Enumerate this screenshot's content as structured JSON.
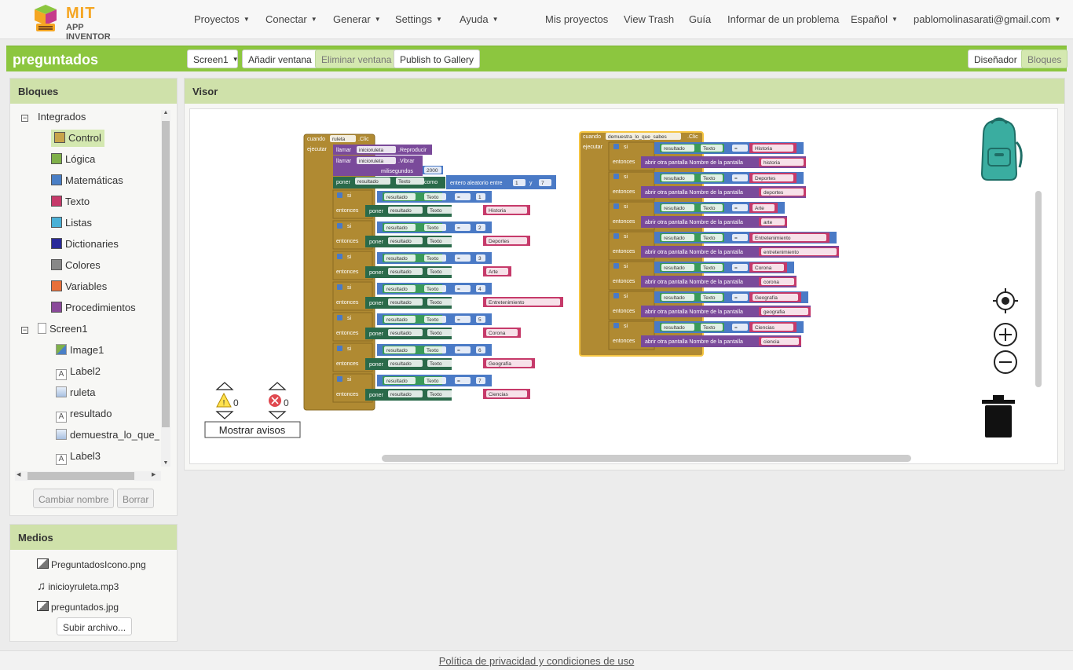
{
  "header": {
    "logo_mit": "MIT",
    "logo_app": "APP INVENTOR",
    "nav_left": [
      "Proyectos",
      "Conectar",
      "Generar",
      "Settings",
      "Ayuda"
    ],
    "nav_right": [
      "Mis proyectos",
      "View Trash",
      "Guía",
      "Informar de un problema"
    ],
    "language": "Español",
    "user": "pablomolinasarati@gmail.com"
  },
  "toolbar": {
    "project": "preguntados",
    "screen_select": "Screen1",
    "add_screen": "Añadir ventana",
    "remove_screen": "Eliminar ventana",
    "publish": "Publish to Gallery",
    "designer": "Diseñador",
    "blocks": "Bloques"
  },
  "blocks_panel": {
    "title": "Bloques",
    "builtin_label": "Integrados",
    "builtin": [
      {
        "label": "Control",
        "color": "#c8a44a"
      },
      {
        "label": "Lógica",
        "color": "#7fb04a"
      },
      {
        "label": "Matemáticas",
        "color": "#4a7fc6"
      },
      {
        "label": "Texto",
        "color": "#c63a6a"
      },
      {
        "label": "Listas",
        "color": "#4ab0d6"
      },
      {
        "label": "Dictionaries",
        "color": "#2a2a9a"
      },
      {
        "label": "Colores",
        "color": "#888888"
      },
      {
        "label": "Variables",
        "color": "#e8703a"
      },
      {
        "label": "Procedimientos",
        "color": "#8a4a9a"
      }
    ],
    "screen_label": "Screen1",
    "components": [
      {
        "label": "Image1",
        "icon": "image-icon"
      },
      {
        "label": "Label2",
        "icon": "label-icon"
      },
      {
        "label": "ruleta",
        "icon": "button-icon"
      },
      {
        "label": "resultado",
        "icon": "label-icon"
      },
      {
        "label": "demuestra_lo_que_sab",
        "icon": "button-icon"
      },
      {
        "label": "Label3",
        "icon": "label-icon"
      }
    ],
    "rename": "Cambiar nombre",
    "delete": "Borrar"
  },
  "media_panel": {
    "title": "Medios",
    "files": [
      "PreguntadosIcono.png",
      "inicioyruleta.mp3",
      "preguntados.jpg"
    ],
    "upload": "Subir archivo..."
  },
  "viewer": {
    "title": "Visor",
    "warnings_count": "0",
    "errors_count": "0",
    "show_warnings": "Mostrar avisos"
  },
  "block1": {
    "cuando": "cuando",
    "component": "ruleta",
    "event": ".Clic",
    "ejecutar": "ejecutar",
    "llamar": "llamar",
    "sound": "inicioruleta",
    "reproducir": ".Reproducir",
    "vibrar": ".Vibrar",
    "milisegundos": "milisegundos",
    "ms_value": "2000",
    "poner": "poner",
    "target": "resultado",
    "prop": "Texto",
    "como": "como",
    "random": "entero aleatorio entre",
    "rand_from": "1",
    "y": "y",
    "rand_to": "7",
    "si": "si",
    "entonces": "entonces",
    "eq": "=",
    "cases": [
      {
        "num": "1",
        "text": "Historia"
      },
      {
        "num": "2",
        "text": "Deportes"
      },
      {
        "num": "3",
        "text": "Arte"
      },
      {
        "num": "4",
        "text": "Entretenimiento"
      },
      {
        "num": "5",
        "text": "Corona"
      },
      {
        "num": "6",
        "text": "Geografía"
      },
      {
        "num": "7",
        "text": "Ciencias"
      }
    ]
  },
  "block2": {
    "cuando": "cuando",
    "component": "demuestra_lo_que_sabes",
    "event": ".Clic",
    "ejecutar": "ejecutar",
    "si": "si",
    "entonces": "entonces",
    "open_screen": "abrir otra pantalla  Nombre de la pantalla",
    "target": "resultado",
    "prop": "Texto",
    "eq": "=",
    "cases": [
      {
        "text": "Historia",
        "screen": "historia"
      },
      {
        "text": "Deportes",
        "screen": "deportes"
      },
      {
        "text": "Arte",
        "screen": "arte"
      },
      {
        "text": "Entretenimiento",
        "screen": "entretenimiento"
      },
      {
        "text": "Corona",
        "screen": "corona"
      },
      {
        "text": "Geografía",
        "screen": "geografia"
      },
      {
        "text": "Ciencias",
        "screen": "ciencia"
      }
    ]
  },
  "footer": {
    "policy": "Política de privacidad y condiciones de uso"
  }
}
